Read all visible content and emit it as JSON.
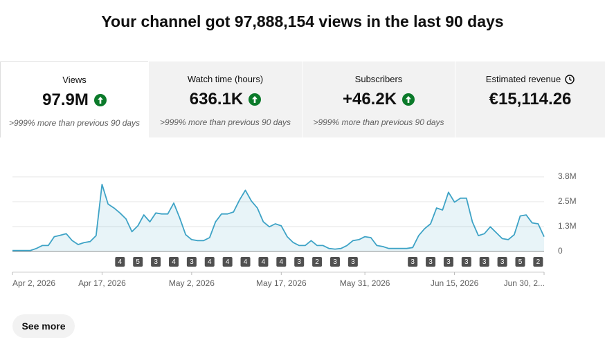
{
  "header": {
    "title": "Your channel got 97,888,154 views in the last 90 days"
  },
  "cards": [
    {
      "label": "Views",
      "value": "97.9M",
      "note": ">999% more than previous 90 days"
    },
    {
      "label": "Watch time (hours)",
      "value": "636.1K",
      "note": ">999% more than previous 90 days"
    },
    {
      "label": "Subscribers",
      "value": "+46.2K",
      "note": ">999% more than previous 90 days"
    },
    {
      "label": "Estimated revenue",
      "value": "€15,114.26"
    }
  ],
  "chart_data": {
    "type": "line",
    "categories": [
      "Apr 2, 2026",
      null,
      null,
      null,
      null,
      null,
      null,
      null,
      null,
      null,
      null,
      null,
      null,
      null,
      null,
      "Apr 17, 2026",
      null,
      null,
      null,
      null,
      null,
      null,
      null,
      null,
      null,
      null,
      null,
      null,
      null,
      null,
      "May 2, 2026",
      null,
      null,
      null,
      null,
      null,
      null,
      null,
      null,
      null,
      null,
      null,
      null,
      null,
      null,
      "May 17, 2026",
      null,
      null,
      null,
      null,
      null,
      null,
      null,
      null,
      null,
      null,
      null,
      null,
      null,
      "May 31, 2026",
      null,
      null,
      null,
      null,
      null,
      null,
      null,
      null,
      null,
      null,
      null,
      null,
      null,
      null,
      "Jun 15, 2026",
      null,
      null,
      null,
      null,
      null,
      null,
      null,
      null,
      null,
      null,
      null,
      null,
      null,
      null,
      "Jun 30, 2..."
    ],
    "values": [
      0.05,
      0.05,
      0.05,
      0.05,
      0.15,
      0.3,
      0.3,
      0.75,
      0.82,
      0.9,
      0.55,
      0.35,
      0.45,
      0.5,
      0.8,
      3.4,
      2.4,
      2.2,
      1.95,
      1.65,
      1.0,
      1.3,
      1.85,
      1.5,
      1.95,
      1.9,
      1.9,
      2.45,
      1.7,
      0.85,
      0.6,
      0.55,
      0.55,
      0.7,
      1.5,
      1.9,
      1.9,
      2.0,
      2.6,
      3.1,
      2.55,
      2.2,
      1.5,
      1.25,
      1.4,
      1.3,
      0.75,
      0.45,
      0.3,
      0.3,
      0.55,
      0.3,
      0.3,
      0.15,
      0.12,
      0.15,
      0.3,
      0.55,
      0.6,
      0.75,
      0.7,
      0.3,
      0.25,
      0.15,
      0.15,
      0.15,
      0.15,
      0.2,
      0.8,
      1.15,
      1.4,
      2.2,
      2.1,
      3.0,
      2.5,
      2.7,
      2.7,
      1.5,
      0.8,
      0.9,
      1.25,
      0.95,
      0.65,
      0.6,
      0.85,
      1.8,
      1.85,
      1.45,
      1.4,
      0.75
    ],
    "marker_counts": [
      null,
      null,
      null,
      null,
      null,
      null,
      null,
      null,
      null,
      null,
      null,
      null,
      null,
      null,
      null,
      null,
      null,
      null,
      4,
      null,
      null,
      5,
      null,
      null,
      3,
      null,
      null,
      4,
      null,
      null,
      3,
      null,
      null,
      4,
      null,
      null,
      4,
      null,
      null,
      4,
      null,
      null,
      4,
      null,
      null,
      4,
      null,
      null,
      3,
      null,
      null,
      2,
      null,
      null,
      3,
      null,
      null,
      3,
      null,
      null,
      null,
      null,
      null,
      null,
      null,
      null,
      null,
      3,
      null,
      null,
      3,
      null,
      null,
      3,
      null,
      null,
      3,
      null,
      null,
      3,
      null,
      null,
      3,
      null,
      null,
      5,
      null,
      null,
      2,
      null
    ],
    "color": "#3ea3c6",
    "ylim": [
      0,
      3.78
    ],
    "yticks": [
      0,
      {
        "value": 1.26,
        "label": "1.3M"
      },
      {
        "value": 2.52,
        "label": "2.5M"
      },
      {
        "value": 3.78,
        "label": "3.8M"
      }
    ],
    "grid": true
  },
  "button": {
    "label": "See more"
  }
}
